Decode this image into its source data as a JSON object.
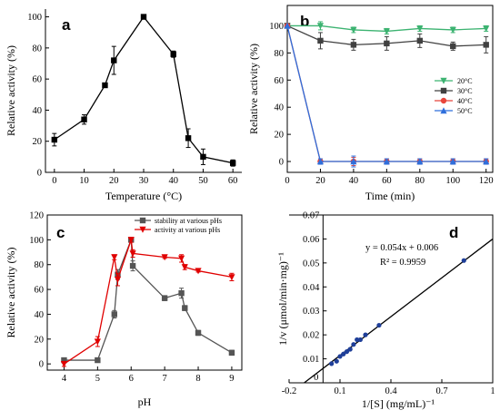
{
  "chart_data": [
    {
      "panel_label": "a",
      "type": "line",
      "xlabel": "Temperature (°C)",
      "ylabel": "Relative activity  (%)",
      "xlim": [
        -3,
        63
      ],
      "ylim": [
        0,
        105
      ],
      "xticks": [
        0,
        10,
        20,
        30,
        40,
        50,
        60
      ],
      "yticks": [
        0,
        20,
        40,
        60,
        80,
        100
      ],
      "series": [
        {
          "color": "#000000",
          "marker": "square",
          "x": [
            0,
            10,
            17,
            20,
            30,
            40,
            45,
            50,
            60
          ],
          "y": [
            21,
            34,
            56,
            72,
            100,
            76,
            22,
            10,
            6
          ],
          "err": [
            4,
            3,
            1,
            9,
            0,
            2,
            6,
            5,
            2
          ]
        }
      ]
    },
    {
      "panel_label": "b",
      "type": "line",
      "xlabel": "Time (min)",
      "ylabel": "Relative activity  (%)",
      "xlim": [
        0,
        124
      ],
      "ylim": [
        -8,
        115
      ],
      "xticks": [
        0,
        20,
        40,
        60,
        80,
        100,
        120
      ],
      "yticks": [
        0,
        20,
        40,
        60,
        80,
        100
      ],
      "legend_position": "right",
      "x": [
        0,
        20,
        40,
        60,
        80,
        100,
        120
      ],
      "series": [
        {
          "name": "20°C",
          "color": "#3cb371",
          "marker": "triangle-down",
          "y": [
            100,
            100,
            97,
            96,
            98,
            97,
            98
          ],
          "err": [
            0,
            3,
            2,
            2,
            2,
            2,
            2
          ]
        },
        {
          "name": "30°C",
          "color": "#404040",
          "marker": "square",
          "y": [
            100,
            89,
            86,
            87,
            89,
            85,
            86
          ],
          "err": [
            0,
            6,
            4,
            5,
            5,
            3,
            6
          ]
        },
        {
          "name": "40°C",
          "color": "#e8453c",
          "marker": "circle",
          "y": [
            100,
            0,
            0,
            0,
            0,
            0,
            0
          ],
          "err": [
            0,
            2,
            3,
            2,
            2,
            2,
            2
          ]
        },
        {
          "name": "50°C",
          "color": "#2f6fdc",
          "marker": "triangle-up",
          "y": [
            100,
            0,
            0,
            0,
            0,
            0,
            0
          ],
          "err": [
            0,
            2,
            4,
            2,
            2,
            2,
            2
          ]
        }
      ]
    },
    {
      "panel_label": "c",
      "type": "line",
      "xlabel": "pH",
      "ylabel": "Relative activity  (%)",
      "xlim": [
        3.5,
        9.3
      ],
      "ylim": [
        -5,
        120
      ],
      "xticks": [
        4,
        5,
        6,
        7,
        8,
        9
      ],
      "yticks": [
        0,
        20,
        40,
        60,
        80,
        100,
        120
      ],
      "legend_position": "top-right",
      "series": [
        {
          "name": "stability at various pHs",
          "color": "#555555",
          "marker": "square",
          "x": [
            4,
            5,
            5.5,
            5.6,
            6,
            6.05,
            7,
            7.5,
            7.6,
            8,
            9
          ],
          "y": [
            3,
            3,
            40,
            72,
            100,
            79,
            53,
            57,
            45,
            25,
            9
          ],
          "err": [
            1,
            1,
            3,
            4,
            1,
            4,
            2,
            4,
            2,
            2,
            2
          ]
        },
        {
          "name": "activity at various pHs",
          "color": "#e00000",
          "marker": "triangle-down",
          "x": [
            4,
            5,
            5.5,
            5.6,
            6,
            6.05,
            7,
            7.5,
            7.6,
            8,
            9
          ],
          "y": [
            0,
            18,
            86,
            68,
            100,
            89,
            86,
            85,
            78,
            75,
            70
          ],
          "err": [
            2,
            4,
            2,
            5,
            2,
            3,
            1,
            3,
            2,
            1,
            3
          ]
        }
      ]
    },
    {
      "panel_label": "d",
      "type": "scatter",
      "xlabel": "1/[S] (mg/mL)⁻¹",
      "ylabel": "1/v (μmol/min·mg)⁻¹",
      "xlim": [
        -0.2,
        1.0
      ],
      "ylim": [
        0,
        0.07
      ],
      "xticks": [
        -0.2,
        0.1,
        0.4,
        0.7,
        1
      ],
      "yticks": [
        0.01,
        0.02,
        0.03,
        0.04,
        0.05,
        0.06,
        0.07
      ],
      "xtick_labels": [
        "-0.2",
        "0.1",
        "0.4",
        "0.7",
        "1"
      ],
      "ytick_labels": [
        "0.01",
        "0.02",
        "0.03",
        "0.04",
        "0.05",
        "0.06",
        "0.07"
      ],
      "x_zero_label": "0",
      "equation": "y = 0.054x + 0.006",
      "r_squared": "R² = 0.9959",
      "fit": {
        "slope": 0.054,
        "intercept": 0.006,
        "x_range": [
          -0.111,
          1.0
        ],
        "color": "#000000"
      },
      "points": {
        "color": "#1f3f99",
        "x": [
          0.05,
          0.08,
          0.1,
          0.12,
          0.14,
          0.16,
          0.18,
          0.2,
          0.22,
          0.25,
          0.33,
          0.83
        ],
        "y": [
          0.008,
          0.009,
          0.011,
          0.012,
          0.013,
          0.014,
          0.016,
          0.018,
          0.018,
          0.02,
          0.024,
          0.051
        ]
      }
    }
  ]
}
